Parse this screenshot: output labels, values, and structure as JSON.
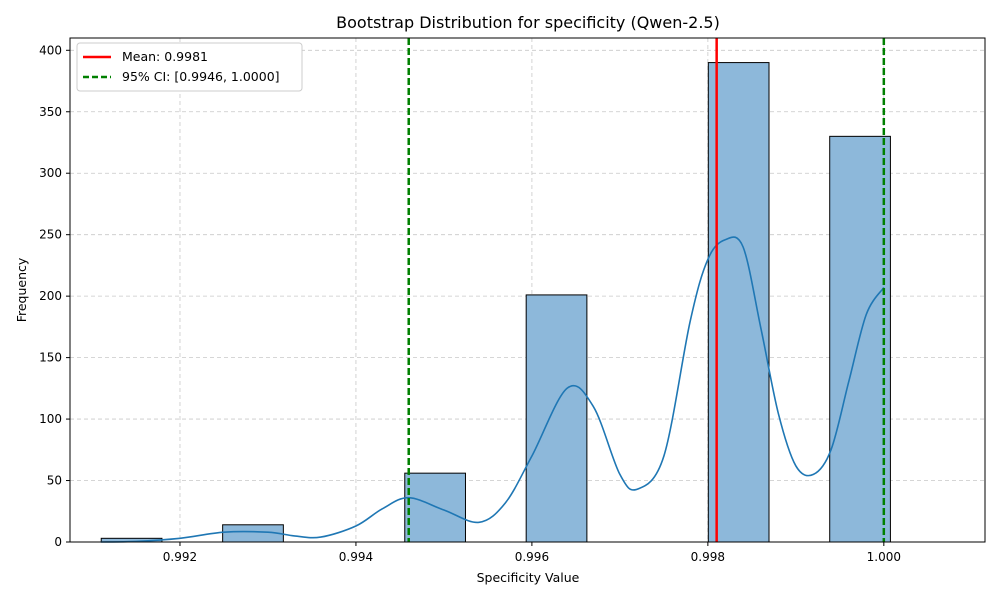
{
  "chart_data": {
    "type": "bar",
    "title": "Bootstrap Distribution for specificity (Qwen-2.5)",
    "xlabel": "Specificity Value",
    "ylabel": "Frequency",
    "xlim": [
      0.99075,
      1.00115
    ],
    "ylim": [
      0,
      410
    ],
    "xticks": [
      "0.992",
      "0.994",
      "0.996",
      "0.998",
      "1.000"
    ],
    "yticks": [
      "0",
      "50",
      "100",
      "150",
      "200",
      "250",
      "300",
      "350",
      "400"
    ],
    "grid": true,
    "legend_position": "upper-left",
    "bar_width": 0.00069,
    "bars": [
      {
        "x": 0.99145,
        "value": 3
      },
      {
        "x": 0.99283,
        "value": 14
      },
      {
        "x": 0.9949,
        "value": 56
      },
      {
        "x": 0.99628,
        "value": 201
      },
      {
        "x": 0.99835,
        "value": 390
      },
      {
        "x": 0.99973,
        "value": 330
      }
    ],
    "kde": {
      "x": [
        0.9911,
        0.9915,
        0.992,
        0.9925,
        0.993,
        0.9933,
        0.9936,
        0.994,
        0.9943,
        0.9946,
        0.995,
        0.9954,
        0.9957,
        0.996,
        0.9964,
        0.9967,
        0.997,
        0.9972,
        0.9975,
        0.9978,
        0.998,
        0.9982,
        0.9984,
        0.9986,
        0.9988,
        0.999,
        0.9992,
        0.9994,
        0.9996,
        0.9998,
        1.0
      ],
      "y": [
        0,
        0.5,
        3,
        8,
        8,
        5,
        4,
        13,
        27,
        36,
        26,
        16,
        32,
        70,
        125,
        110,
        55,
        43,
        70,
        180,
        230,
        246,
        240,
        175,
        105,
        62,
        55,
        75,
        130,
        185,
        207
      ]
    },
    "mean_line": {
      "x": 0.9981,
      "label": "Mean: 0.9981",
      "color": "#ff0000"
    },
    "ci_lines": {
      "x": [
        0.9946,
        1.0
      ],
      "label": "95% CI: [0.9946, 1.0000]",
      "color": "#008000"
    },
    "colors": {
      "bar_fill": "#8db8da",
      "bar_edge": "#000000",
      "kde": "#1f77b4",
      "grid": "#c8c8c8"
    }
  }
}
